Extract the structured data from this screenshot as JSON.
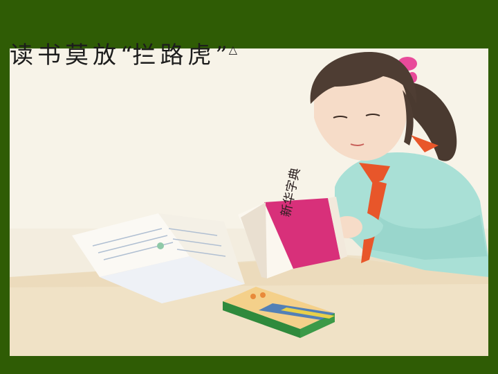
{
  "slide": {
    "title": {
      "prefix": "读书莫放",
      "open_quote": "“",
      "phrase": "拦路虎",
      "close_quote": "”",
      "marker": "△"
    },
    "book_cover_text": "新华字典",
    "colors": {
      "frame": "#2f5c05",
      "paper": "#f6f2e6",
      "book_cover": "#d8307a",
      "scarf": "#e8562a",
      "shirt": "#a8e0d8"
    }
  }
}
